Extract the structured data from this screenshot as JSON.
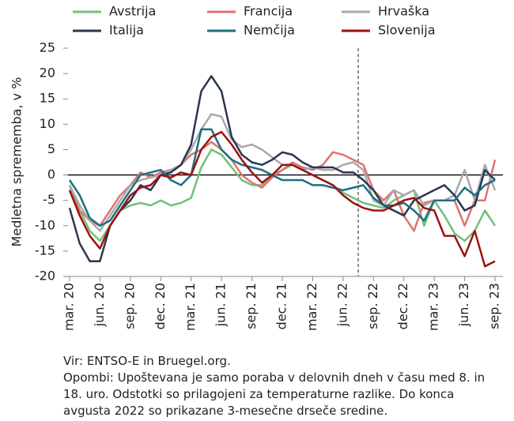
{
  "chart_data": {
    "type": "line",
    "y_label": "Medletna sprememba, v %",
    "categories": [
      "mar. 20",
      null,
      null,
      "jun. 20",
      null,
      null,
      "sep. 20",
      null,
      null,
      "dec. 20",
      null,
      null,
      "mar. 21",
      null,
      null,
      "jun. 21",
      null,
      null,
      "sep. 21",
      null,
      null,
      "dec. 21",
      null,
      null,
      "mar. 22",
      null,
      null,
      "jun. 22",
      null,
      null,
      "sep. 22",
      null,
      null,
      "dec. 22",
      null,
      null,
      "mar. 23",
      null,
      null,
      "jun. 23",
      null,
      null,
      "sep. 23"
    ],
    "series": [
      {
        "name": "Avstrija",
        "color": "#74bf78",
        "values": [
          -2,
          -7,
          -11,
          -13,
          -10,
          -7,
          -6,
          -5.5,
          -6,
          -5,
          -6,
          -5.5,
          -4.5,
          1.5,
          5,
          4,
          1.5,
          -1,
          -2,
          -2,
          0,
          1,
          2,
          1,
          0,
          -1,
          -2,
          -3.5,
          -4.5,
          -5.5,
          -6,
          -6.5,
          -5,
          -4,
          -3,
          -10,
          -5,
          -8,
          -11.5,
          -13,
          -11,
          -7,
          -10
        ]
      },
      {
        "name": "Francija",
        "color": "#e07272",
        "values": [
          -3,
          -7,
          -9,
          -10,
          -7,
          -4,
          -2,
          0.5,
          -0.5,
          0.5,
          1,
          2,
          4,
          5,
          6.5,
          5,
          3,
          0,
          -1.5,
          -2.5,
          -0.5,
          1,
          2.5,
          1.5,
          1,
          2,
          4.5,
          4,
          3,
          2,
          -3,
          -5,
          -3,
          -8,
          -11,
          -5.5,
          -5,
          -5,
          -5,
          -10,
          -5,
          -5,
          3
        ]
      },
      {
        "name": "Hrvaška",
        "color": "#a9a9a9",
        "values": [
          -2,
          -6,
          -9,
          -11,
          -8,
          -5,
          -2,
          -1,
          -0.5,
          0,
          1,
          2,
          5,
          9,
          12,
          11.5,
          7,
          5.5,
          6,
          5,
          3.5,
          2,
          2,
          1,
          1.5,
          1,
          1,
          2,
          2.5,
          1,
          -5,
          -6,
          -3,
          -4,
          -3,
          -6,
          -5,
          -5,
          -4,
          1,
          -5,
          2,
          -3
        ]
      },
      {
        "name": "Italija",
        "color": "#2b3650",
        "values": [
          -6.5,
          -13.5,
          -17,
          -17,
          -10,
          -7,
          -5,
          -2,
          -3,
          0,
          0.5,
          2,
          6,
          16.5,
          19.5,
          16.5,
          7.5,
          4,
          2.5,
          2,
          3,
          4.5,
          4,
          2.5,
          1.5,
          1.5,
          1.5,
          0.5,
          0.5,
          -1,
          -3,
          -6,
          -7,
          -8,
          -5,
          -4,
          -3,
          -2,
          -4,
          -7,
          -6,
          1,
          -1
        ]
      },
      {
        "name": "Nemčija",
        "color": "#1d6f80",
        "values": [
          -1,
          -4,
          -8.5,
          -10,
          -9,
          -6,
          -3,
          0,
          0.5,
          1,
          -1,
          -2,
          0,
          9,
          9,
          5,
          3,
          2,
          1.5,
          1,
          0,
          -1,
          -1,
          -1,
          -2,
          -2,
          -2.5,
          -3,
          -2.5,
          -2,
          -4.5,
          -6,
          -6,
          -5.5,
          -7,
          -9,
          -5,
          -5,
          -5,
          -2.5,
          -4,
          -2,
          -1
        ]
      },
      {
        "name": "Slovenija",
        "color": "#9b1212",
        "values": [
          -3,
          -8,
          -12,
          -14.5,
          -10,
          -7,
          -4,
          -2.5,
          -2,
          0,
          -0.5,
          0.5,
          0,
          5,
          7.5,
          8.5,
          6,
          3,
          0.5,
          -1.5,
          0,
          2,
          2,
          1,
          0,
          -1,
          -2,
          -4,
          -5.5,
          -6.5,
          -7,
          -7,
          -6,
          -5,
          -4.5,
          -6.5,
          -7,
          -12,
          -12,
          -16,
          -11,
          -18,
          -17
        ]
      }
    ],
    "ylim": [
      -20,
      25
    ],
    "yticks": [
      -20,
      -15,
      -10,
      -5,
      0,
      5,
      10,
      15,
      20,
      25
    ],
    "notes": [
      "Vir: ENTSO-E in Bruegel.org.",
      "Opombi: Upoštevana je samo poraba v delovnih dneh v času med 8. in",
      "18. uro. Odstotki so prilagojeni za temperaturne razlike. Do konca",
      "avgusta 2022 so prikazane 3-mesečne drseče sredine."
    ]
  }
}
